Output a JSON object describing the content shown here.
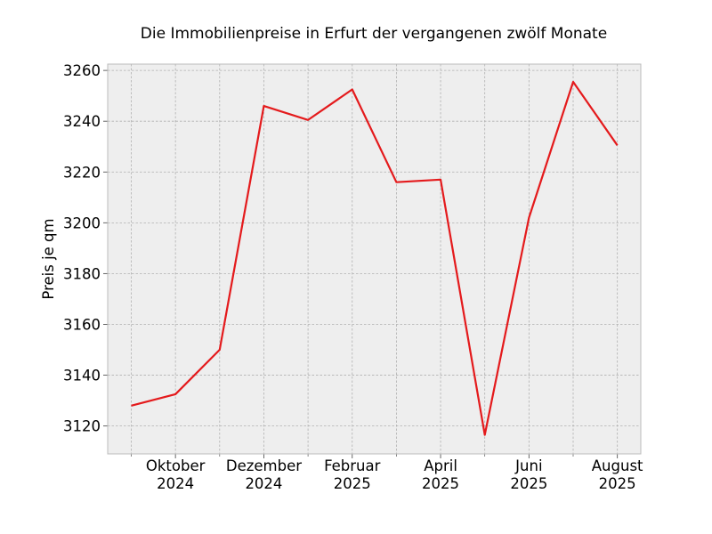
{
  "chart_data": {
    "type": "line",
    "title": "Die Immobilienpreise in Erfurt der vergangenen zwölf Monate",
    "xlabel": "",
    "ylabel": "Preis je qm",
    "x": [
      "2024-09",
      "2024-10",
      "2024-11",
      "2024-12",
      "2025-01",
      "2025-02",
      "2025-03",
      "2025-04",
      "2025-05",
      "2025-06",
      "2025-07",
      "2025-08"
    ],
    "x_tick_labels": [
      [
        "Oktober",
        "2024"
      ],
      [
        "Dezember",
        "2024"
      ],
      [
        "Februar",
        "2025"
      ],
      [
        "April",
        "2025"
      ],
      [
        "Juni",
        "2025"
      ],
      [
        "August",
        "2025"
      ]
    ],
    "x_tick_positions": [
      "2024-10",
      "2024-12",
      "2025-02",
      "2025-04",
      "2025-06",
      "2025-08"
    ],
    "series": [
      {
        "values": [
          3128,
          3132.5,
          3150,
          3246,
          3240.5,
          3252.5,
          3216,
          3217,
          3116.5,
          3202,
          3255.5,
          3230.5
        ]
      }
    ],
    "ylim": [
      3109,
      3262.5
    ],
    "yticks": [
      3120,
      3140,
      3160,
      3180,
      3200,
      3220,
      3240,
      3260
    ],
    "grid": true,
    "legend": "none",
    "colors": {
      "line": "#e41a1c",
      "plot_bg": "#eeeeee",
      "grid": "#b0b0b0",
      "spine": "#bcbcbc"
    }
  }
}
